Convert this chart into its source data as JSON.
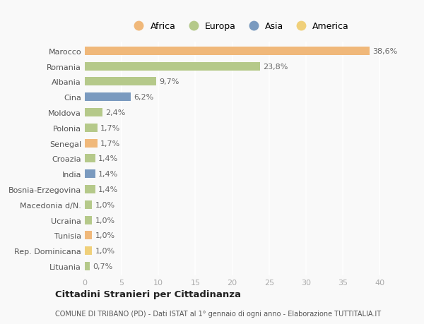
{
  "countries": [
    "Lituania",
    "Rep. Dominicana",
    "Tunisia",
    "Ucraina",
    "Macedonia d/N.",
    "Bosnia-Erzegovina",
    "India",
    "Croazia",
    "Senegal",
    "Polonia",
    "Moldova",
    "Cina",
    "Albania",
    "Romania",
    "Marocco"
  ],
  "values": [
    0.7,
    1.0,
    1.0,
    1.0,
    1.0,
    1.4,
    1.4,
    1.4,
    1.7,
    1.7,
    2.4,
    6.2,
    9.7,
    23.8,
    38.6
  ],
  "labels": [
    "0,7%",
    "1,0%",
    "1,0%",
    "1,0%",
    "1,0%",
    "1,4%",
    "1,4%",
    "1,4%",
    "1,7%",
    "1,7%",
    "2,4%",
    "6,2%",
    "9,7%",
    "23,8%",
    "38,6%"
  ],
  "continent_colors": {
    "Africa": "#f0b87a",
    "Europa": "#b5c98a",
    "Asia": "#7a9abf",
    "America": "#f0d07a"
  },
  "country_continents": {
    "Marocco": "Africa",
    "Romania": "Europa",
    "Albania": "Europa",
    "Cina": "Asia",
    "Moldova": "Europa",
    "Polonia": "Europa",
    "Senegal": "Africa",
    "Croazia": "Europa",
    "India": "Asia",
    "Bosnia-Erzegovina": "Europa",
    "Macedonia d/N.": "Europa",
    "Ucraina": "Europa",
    "Tunisia": "Africa",
    "Rep. Dominicana": "America",
    "Lituania": "Europa"
  },
  "title": "Cittadini Stranieri per Cittadinanza",
  "subtitle": "COMUNE DI TRIBANO (PD) - Dati ISTAT al 1° gennaio di ogni anno - Elaborazione TUTTITALIA.IT",
  "xlim": [
    0,
    42
  ],
  "xticks": [
    0,
    5,
    10,
    15,
    20,
    25,
    30,
    35,
    40
  ],
  "bg_color": "#f9f9f9",
  "grid_color": "#ffffff",
  "bar_height": 0.55,
  "label_fontsize": 8,
  "ytick_fontsize": 8,
  "xtick_fontsize": 8
}
